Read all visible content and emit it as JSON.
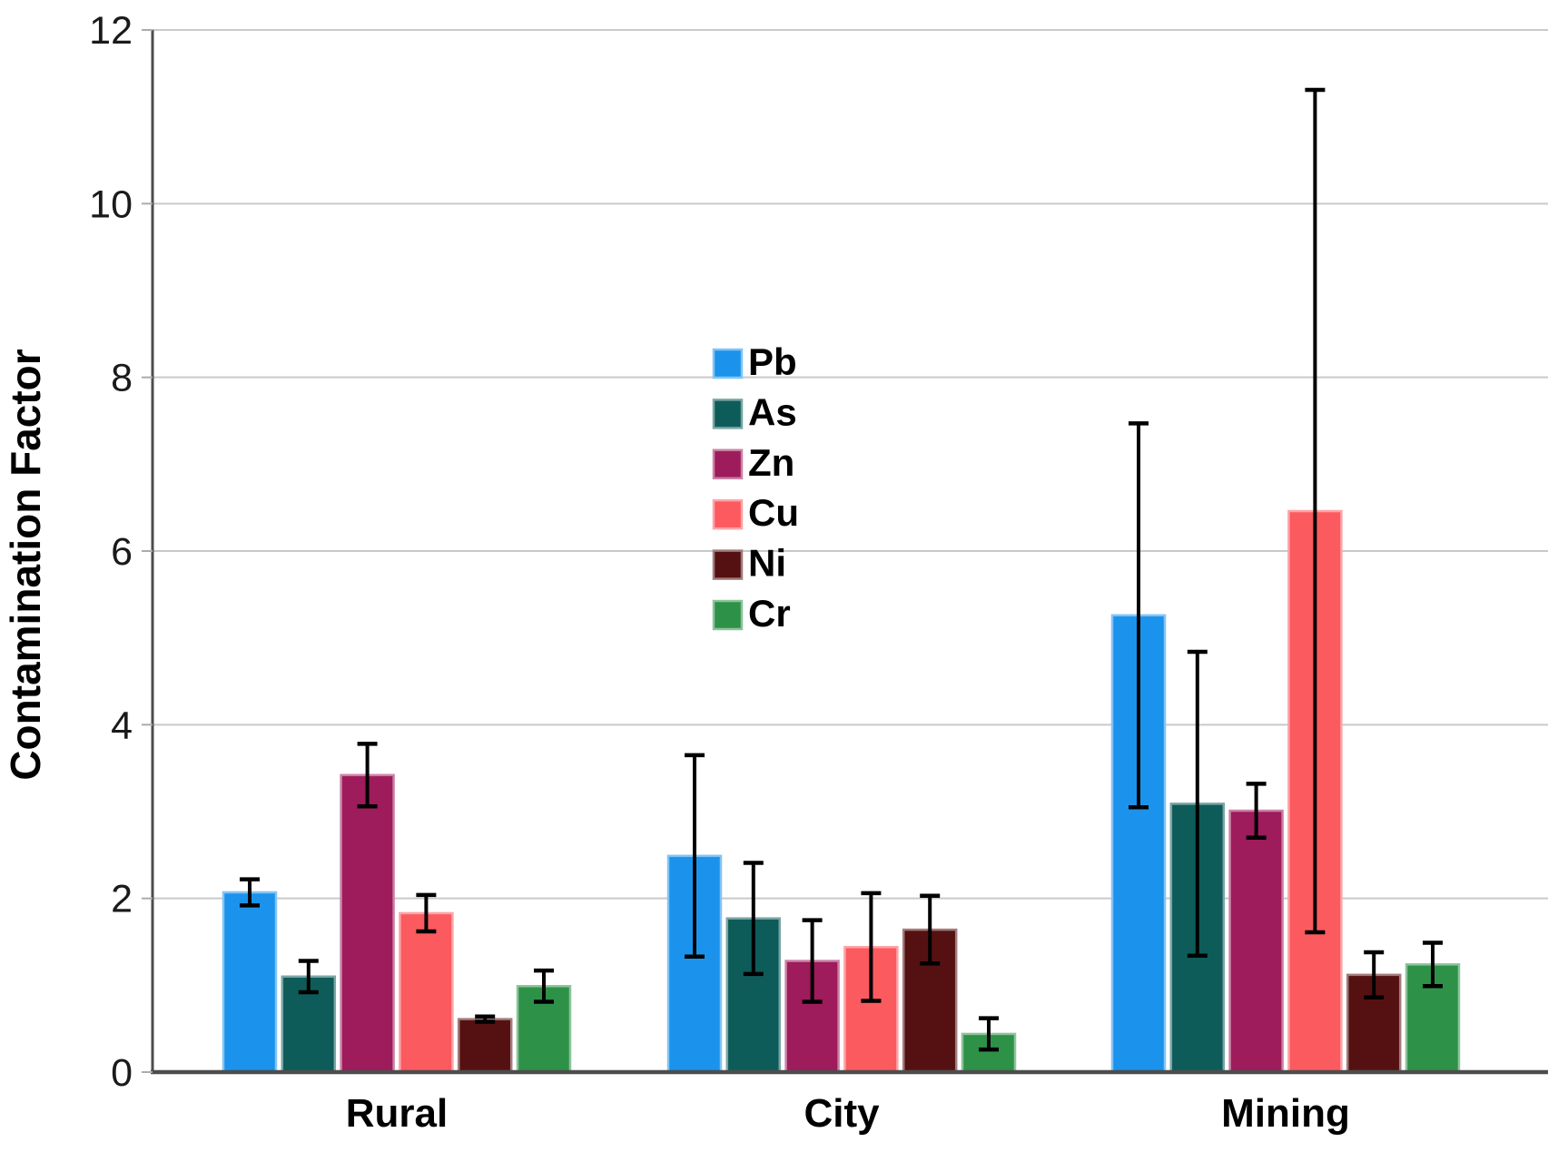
{
  "chart_data": {
    "type": "bar",
    "title": "",
    "xlabel": "",
    "ylabel": "Contamination Factor",
    "categories": [
      "Rural",
      "City",
      "Mining"
    ],
    "series": [
      {
        "name": "Pb",
        "color": "#1B93EC",
        "values": [
          2.07,
          2.49,
          5.26
        ],
        "errors": [
          0.15,
          1.16,
          2.21
        ]
      },
      {
        "name": "As",
        "color": "#0E5C5A",
        "values": [
          1.1,
          1.77,
          3.09
        ],
        "errors": [
          0.18,
          0.64,
          1.75
        ]
      },
      {
        "name": "Zn",
        "color": "#9E1B5C",
        "values": [
          3.42,
          1.28,
          3.01
        ],
        "errors": [
          0.36,
          0.47,
          0.31
        ]
      },
      {
        "name": "Cu",
        "color": "#FB5A5F",
        "values": [
          1.83,
          1.44,
          6.46
        ],
        "errors": [
          0.21,
          0.62,
          4.85
        ]
      },
      {
        "name": "Ni",
        "color": "#551111",
        "values": [
          0.61,
          1.64,
          1.12
        ],
        "errors": [
          0.03,
          0.39,
          0.26
        ]
      },
      {
        "name": "Cr",
        "color": "#2E9148",
        "values": [
          0.99,
          0.44,
          1.24
        ],
        "errors": [
          0.18,
          0.18,
          0.25
        ]
      }
    ],
    "yticks": [
      0,
      2,
      4,
      6,
      8,
      10,
      12
    ],
    "ylim": [
      0,
      12
    ],
    "grid": true,
    "error_bars": true,
    "legend_position": "inside-upper-middle",
    "colors": {
      "background": "#FFFFFF",
      "grid_color": "#C9C9C9",
      "axis_color": "#4D4D4D",
      "tick_color": "#ABABAB",
      "error_bar_color": "#000000",
      "text_color": "#000000"
    }
  }
}
